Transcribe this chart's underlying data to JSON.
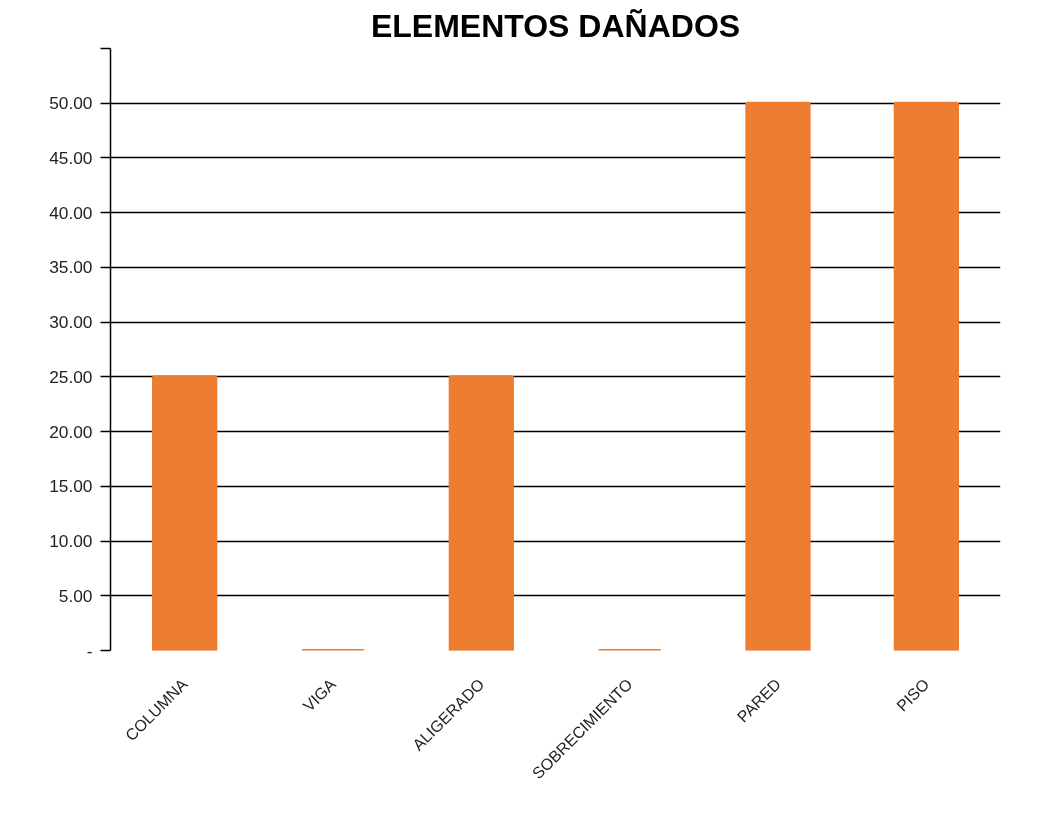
{
  "chart_data": {
    "type": "bar",
    "title": "ELEMENTOS DAÑADOS",
    "categories": [
      "COLUMNA",
      "VIGA",
      "ALIGERADO",
      "SOBRECIMIENTO",
      "PARED",
      "PISO"
    ],
    "values": [
      25,
      0,
      25,
      0,
      50,
      50
    ],
    "color": "#ed7d31",
    "ylim": [
      0,
      55
    ],
    "yticks": [
      {
        "value": 0,
        "label": "-"
      },
      {
        "value": 5,
        "label": "5.00"
      },
      {
        "value": 10,
        "label": "10.00"
      },
      {
        "value": 15,
        "label": "15.00"
      },
      {
        "value": 20,
        "label": "20.00"
      },
      {
        "value": 25,
        "label": "25.00"
      },
      {
        "value": 30,
        "label": "30.00"
      },
      {
        "value": 35,
        "label": "35.00"
      },
      {
        "value": 40,
        "label": "40.00"
      },
      {
        "value": 45,
        "label": "45.00"
      },
      {
        "value": 50,
        "label": "50.00"
      },
      {
        "value": 55,
        "label": null
      }
    ],
    "grid": "y"
  }
}
